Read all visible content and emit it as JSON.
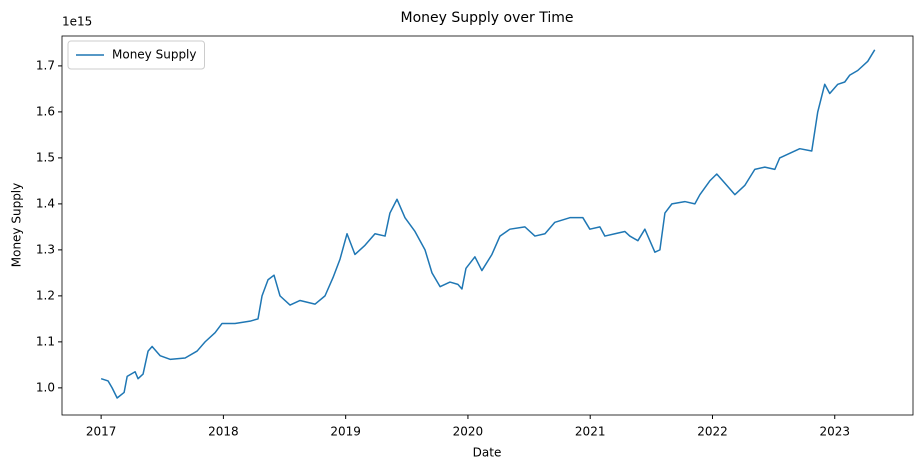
{
  "chart_data": {
    "type": "line",
    "title": "Money Supply over Time",
    "x_label": "Date",
    "y_label": "Money Supply",
    "y_offset_label": "1e15",
    "x": [
      2017.0,
      2017.057,
      2017.09,
      2017.131,
      2017.188,
      2017.213,
      2017.278,
      2017.302,
      2017.343,
      2017.384,
      2017.417,
      2017.482,
      2017.564,
      2017.687,
      2017.785,
      2017.85,
      2017.932,
      2017.989,
      2018.095,
      2018.218,
      2018.283,
      2018.316,
      2018.365,
      2018.414,
      2018.463,
      2018.545,
      2018.627,
      2018.749,
      2018.831,
      2018.897,
      2018.954,
      2019.011,
      2019.076,
      2019.158,
      2019.24,
      2019.322,
      2019.362,
      2019.42,
      2019.485,
      2019.567,
      2019.649,
      2019.706,
      2019.772,
      2019.853,
      2019.918,
      2019.951,
      2019.984,
      2020.057,
      2020.114,
      2020.196,
      2020.262,
      2020.343,
      2020.466,
      2020.548,
      2020.63,
      2020.711,
      2020.834,
      2020.94,
      2020.997,
      2021.079,
      2021.12,
      2021.202,
      2021.283,
      2021.324,
      2021.39,
      2021.447,
      2021.488,
      2021.529,
      2021.57,
      2021.611,
      2021.668,
      2021.774,
      2021.856,
      2021.897,
      2021.978,
      2022.035,
      2022.101,
      2022.183,
      2022.264,
      2022.346,
      2022.428,
      2022.51,
      2022.55,
      2022.632,
      2022.714,
      2022.812,
      2022.861,
      2022.918,
      2022.959,
      2023.025,
      2023.082,
      2023.123,
      2023.188,
      2023.27,
      2023.327
    ],
    "series": [
      {
        "name": "Money Supply",
        "color": "#1f77b4",
        "values": [
          1.02,
          1.015,
          1.0,
          0.978,
          0.99,
          1.025,
          1.035,
          1.02,
          1.03,
          1.08,
          1.09,
          1.07,
          1.062,
          1.065,
          1.08,
          1.1,
          1.12,
          1.14,
          1.14,
          1.145,
          1.15,
          1.2,
          1.235,
          1.245,
          1.2,
          1.18,
          1.19,
          1.182,
          1.2,
          1.24,
          1.28,
          1.335,
          1.29,
          1.31,
          1.335,
          1.33,
          1.38,
          1.41,
          1.37,
          1.34,
          1.3,
          1.25,
          1.22,
          1.23,
          1.225,
          1.215,
          1.26,
          1.285,
          1.255,
          1.29,
          1.33,
          1.345,
          1.35,
          1.33,
          1.335,
          1.36,
          1.37,
          1.37,
          1.345,
          1.35,
          1.33,
          1.335,
          1.34,
          1.33,
          1.32,
          1.345,
          1.32,
          1.295,
          1.3,
          1.38,
          1.4,
          1.405,
          1.4,
          1.42,
          1.45,
          1.465,
          1.445,
          1.42,
          1.44,
          1.475,
          1.48,
          1.475,
          1.5,
          1.51,
          1.52,
          1.515,
          1.6,
          1.66,
          1.64,
          1.66,
          1.665,
          1.68,
          1.69,
          1.71,
          1.735
        ]
      }
    ],
    "xlim": [
      2016.68,
      2023.64
    ],
    "xticks": [
      2017,
      2018,
      2019,
      2020,
      2021,
      2022,
      2023
    ],
    "ylim": [
      0.941,
      1.765
    ],
    "yticks": [
      {
        "value": 1,
        "label": "1.0"
      },
      1.1,
      1.2,
      1.3,
      1.4,
      1.5,
      1.6,
      1.7
    ],
    "legend": "upper left"
  }
}
